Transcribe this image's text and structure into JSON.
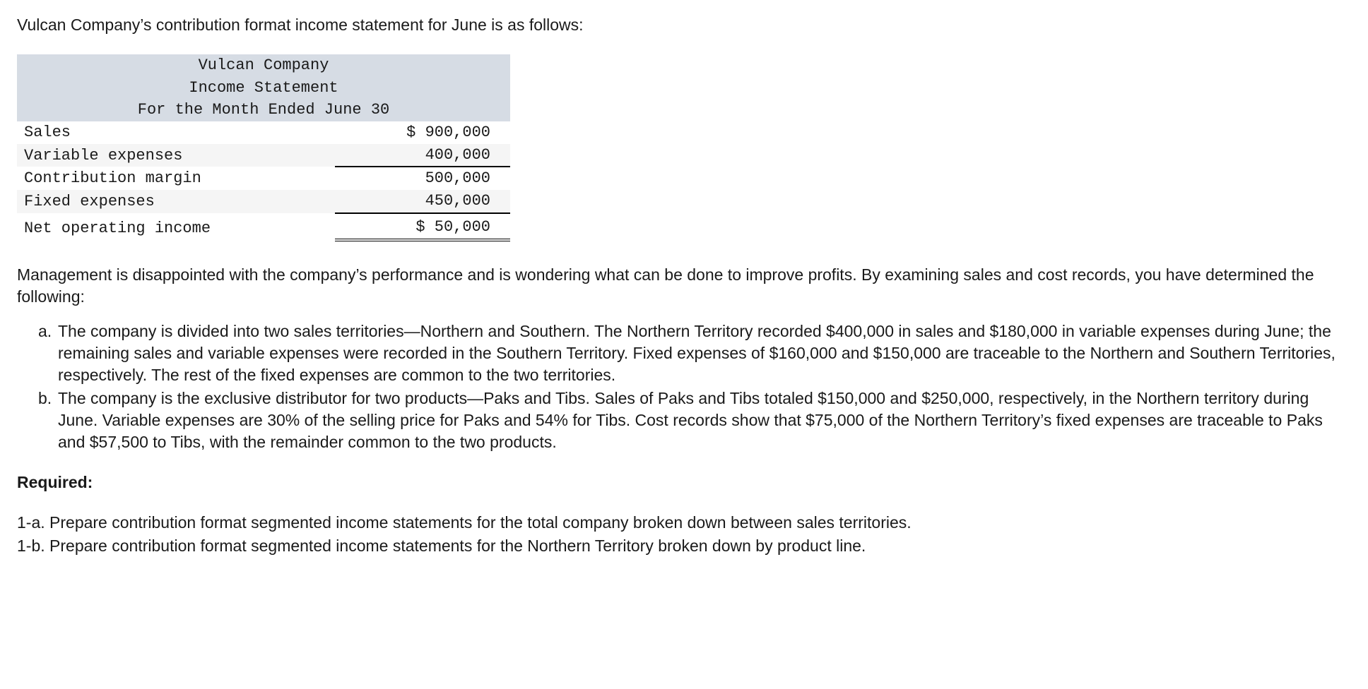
{
  "intro": "Vulcan Company’s contribution format income statement for June is as follows:",
  "statement": {
    "header": {
      "l1": "Vulcan Company",
      "l2": "Income Statement",
      "l3": "For the Month Ended June 30"
    },
    "rows": {
      "sales_lbl": "Sales",
      "sales_val": "$ 900,000",
      "ve_lbl": "Variable expenses",
      "ve_val": "400,000",
      "cm_lbl": "Contribution margin",
      "cm_val": "500,000",
      "fe_lbl": "Fixed expenses",
      "fe_val": "450,000",
      "noi_lbl": "Net operating income",
      "noi_val": "$ 50,000"
    }
  },
  "mid_para": "Management is disappointed with the company’s performance and is wondering what can be done to improve profits. By examining sales and cost records, you have determined the following:",
  "items": {
    "a_mark": "a.",
    "a_text": "The company is divided into two sales territories—Northern and Southern. The Northern Territory recorded $400,000 in sales and $180,000 in variable expenses during June; the remaining sales and variable expenses were recorded in the Southern Territory. Fixed expenses of $160,000 and $150,000 are traceable to the Northern and Southern Territories, respectively. The rest of the fixed expenses are common to the two territories.",
    "b_mark": "b.",
    "b_text": "The company is the exclusive distributor for two products—Paks and Tibs. Sales of Paks and Tibs totaled $150,000 and $250,000, respectively, in the Northern territory during June. Variable expenses are 30% of the selling price for Paks and 54% for Tibs. Cost records show that $75,000 of the Northern Territory’s fixed expenses are traceable to Paks and $57,500 to Tibs, with the remainder common to the two products."
  },
  "required_head": "Required:",
  "req_1a": "1-a. Prepare contribution format segmented income statements for the total company broken down between sales territories.",
  "req_1b": "1-b. Prepare contribution format segmented income statements for the Northern Territory broken down by product line."
}
